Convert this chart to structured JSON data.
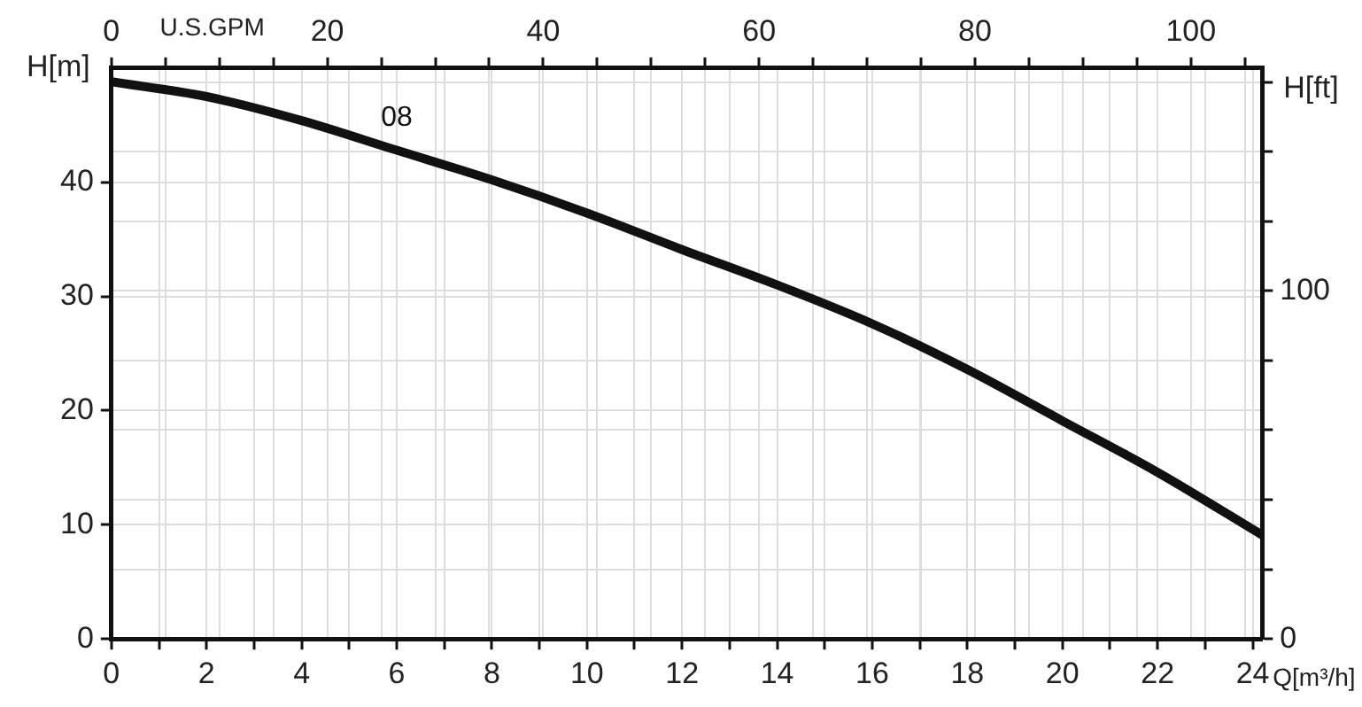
{
  "chart_data": {
    "type": "line",
    "xlabel": "Q[m³/h]",
    "ylabel": "H[m]",
    "y2label": "H[ft]",
    "x2label": "U.S.GPM",
    "x": [
      0,
      2,
      4,
      6,
      8,
      10,
      12,
      14,
      16,
      18,
      20,
      22,
      24.2
    ],
    "series": [
      {
        "name": "08",
        "color": "#111111",
        "values": [
          48.8,
          47.5,
          45.4,
          42.8,
          40.2,
          37.3,
          34.1,
          31.0,
          27.6,
          23.6,
          19.1,
          14.6,
          9.1
        ]
      }
    ],
    "xlim": [
      0,
      24.2
    ],
    "xticks": [
      0,
      {
        "value": 1,
        "label": null
      },
      2,
      {
        "value": 3,
        "label": null
      },
      4,
      {
        "value": 5,
        "label": null
      },
      6,
      {
        "value": 7,
        "label": null
      },
      8,
      {
        "value": 9,
        "label": null
      },
      10,
      {
        "value": 11,
        "label": null
      },
      12,
      {
        "value": 13,
        "label": null
      },
      14,
      {
        "value": 15,
        "label": null
      },
      16,
      {
        "value": 17,
        "label": null
      },
      18,
      {
        "value": 19,
        "label": null
      },
      20,
      {
        "value": 21,
        "label": null
      },
      22,
      {
        "value": 23,
        "label": null
      },
      24
    ],
    "x2lim": [
      0,
      106.6
    ],
    "x2ticks": [
      0,
      {
        "value": 5,
        "label": null
      },
      {
        "value": 10,
        "label": null
      },
      {
        "value": 15,
        "label": null
      },
      20,
      {
        "value": 25,
        "label": null
      },
      {
        "value": 30,
        "label": null
      },
      {
        "value": 35,
        "label": null
      },
      40,
      {
        "value": 45,
        "label": null
      },
      {
        "value": 50,
        "label": null
      },
      {
        "value": 55,
        "label": null
      },
      60,
      {
        "value": 65,
        "label": null
      },
      {
        "value": 70,
        "label": null
      },
      {
        "value": 75,
        "label": null
      },
      80,
      {
        "value": 85,
        "label": null
      },
      {
        "value": 90,
        "label": null
      },
      {
        "value": 95,
        "label": null
      },
      100,
      {
        "value": 105,
        "label": null
      }
    ],
    "ylim": [
      0,
      50
    ],
    "yticks": [
      0,
      10,
      20,
      30,
      40
    ],
    "y2lim": [
      0,
      164
    ],
    "y2ticks": [
      0,
      {
        "value": 20,
        "label": null
      },
      {
        "value": 40,
        "label": null
      },
      {
        "value": 60,
        "label": null
      },
      {
        "value": 80,
        "label": null
      },
      100,
      {
        "value": 120,
        "label": null
      },
      {
        "value": 140,
        "label": null
      },
      {
        "value": 160,
        "label": null
      }
    ],
    "grid": true,
    "legend": false,
    "marker": "none",
    "line_style": "solid"
  }
}
